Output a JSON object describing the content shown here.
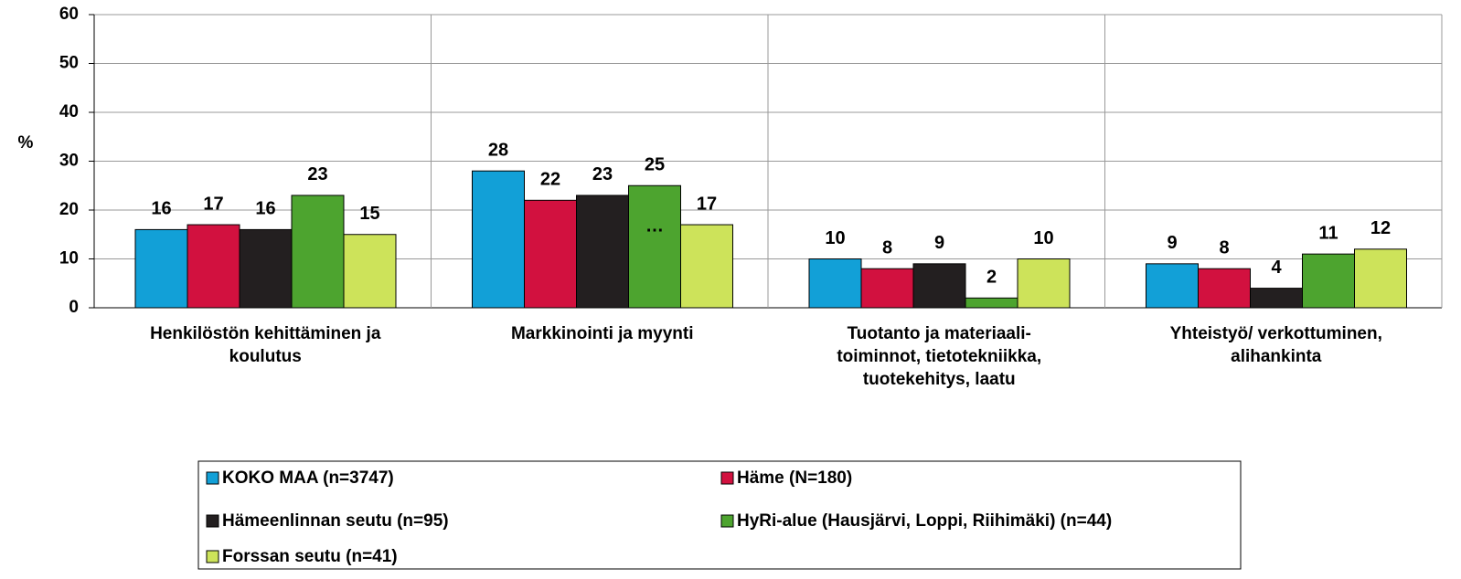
{
  "chart_data": {
    "type": "bar",
    "y_label": "%",
    "categories": [
      "Henkilöstön kehittäminen  ja\nkoulutus",
      "Markkinointi ja myynti",
      "Tuotanto ja materiaali-\ntoiminnot, tietotekniikka,\ntuotekehitys, laatu",
      "Yhteistyö/ verkottuminen,\nalihankinta"
    ],
    "series": [
      {
        "name": "KOKO MAA (n=3747)",
        "color": "#12a0d7",
        "values": [
          16,
          28,
          10,
          9
        ]
      },
      {
        "name": "Häme (N=180)",
        "color": "#d2113f",
        "values": [
          17,
          22,
          8,
          8
        ]
      },
      {
        "name": "Hämeenlinnan seutu  (n=95)",
        "color": "#231f20",
        "values": [
          16,
          23,
          9,
          4
        ]
      },
      {
        "name": "HyRi-alue (Hausjärvi, Loppi, Riihimäki) (n=44)",
        "color": "#4da42f",
        "values": [
          23,
          25,
          2,
          11
        ]
      },
      {
        "name": "Forssan seutu (n=41)",
        "color": "#cde35a",
        "values": [
          15,
          17,
          10,
          12
        ]
      }
    ],
    "annotation": "…",
    "ylim": [
      0,
      60
    ],
    "yticks": [
      0,
      10,
      20,
      30,
      40,
      50,
      60
    ],
    "grid": true,
    "legend": "bottom"
  }
}
